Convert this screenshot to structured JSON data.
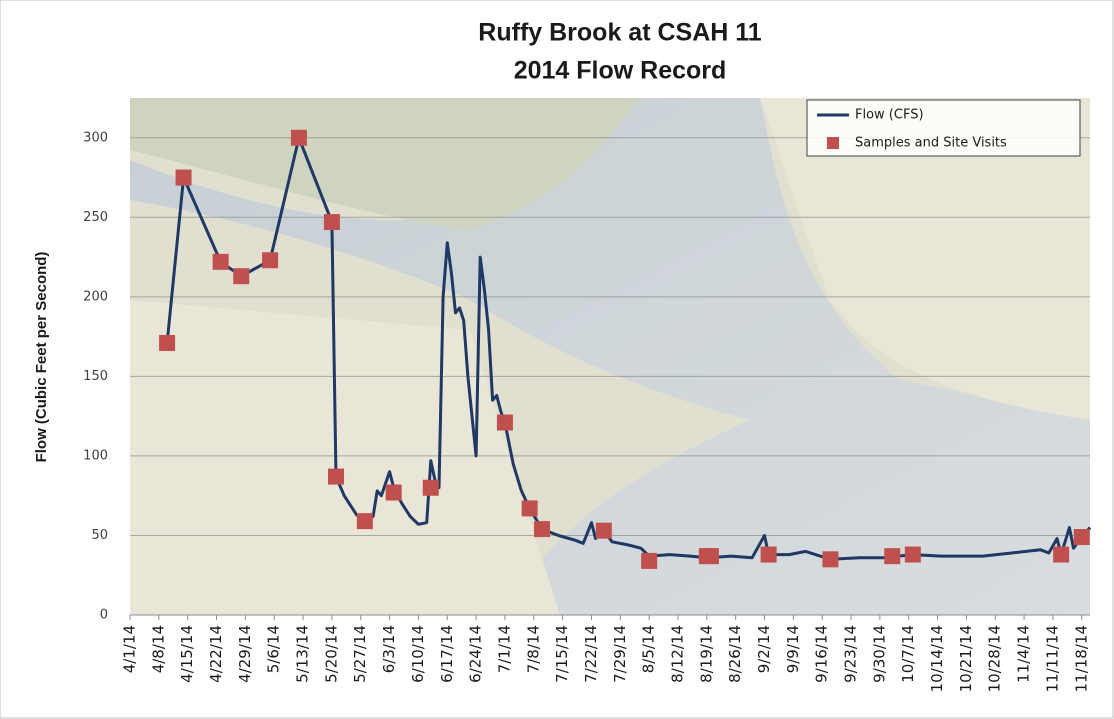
{
  "chart_data": {
    "type": "line",
    "title": "Ruffy Brook at CSAH 11",
    "subtitle": "2014 Flow Record",
    "y_label": "Flow (Cubic Feet per Second)",
    "ylim": [
      0,
      325
    ],
    "yticks": [
      0,
      50,
      100,
      150,
      200,
      250,
      300
    ],
    "xlim": [
      "4/1/14",
      "11/20/14"
    ],
    "xticks": [
      "4/1/14",
      "4/8/14",
      "4/15/14",
      "4/22/14",
      "4/29/14",
      "5/6/14",
      "5/13/14",
      "5/20/14",
      "5/27/14",
      "6/3/14",
      "6/10/14",
      "6/17/14",
      "6/24/14",
      "7/1/14",
      "7/8/14",
      "7/15/14",
      "7/22/14",
      "7/29/14",
      "8/5/14",
      "8/12/14",
      "8/19/14",
      "8/26/14",
      "9/2/14",
      "9/9/14",
      "9/16/14",
      "9/23/14",
      "9/30/14",
      "10/7/14",
      "10/14/14",
      "10/21/14",
      "10/28/14",
      "11/4/14",
      "11/11/14",
      "11/18/14"
    ],
    "grid": true,
    "legend": "upper right",
    "series": [
      {
        "name": "Flow (CFS)",
        "color": "#1f3864",
        "mode": "line",
        "x": [
          "4/10/14",
          "4/14/14",
          "4/23/14",
          "4/28/14",
          "5/5/14",
          "5/12/14",
          "5/20/14",
          "5/21/14",
          "5/23/14",
          "5/26/14",
          "5/28/14",
          "5/30/14",
          "5/31/14",
          "6/1/14",
          "6/3/14",
          "6/4/14",
          "6/6/14",
          "6/8/14",
          "6/10/14",
          "6/12/14",
          "6/13/14",
          "6/14/14",
          "6/15/14",
          "6/16/14",
          "6/17/14",
          "6/18/14",
          "6/19/14",
          "6/20/14",
          "6/21/14",
          "6/22/14",
          "6/24/14",
          "6/25/14",
          "6/26/14",
          "6/27/14",
          "6/28/14",
          "6/29/14",
          "6/30/14",
          "7/1/14",
          "7/3/14",
          "7/5/14",
          "7/7/14",
          "7/10/14",
          "7/14/14",
          "7/18/14",
          "7/20/14",
          "7/22/14",
          "7/23/14",
          "7/25/14",
          "7/27/14",
          "7/31/14",
          "8/3/14",
          "8/5/14",
          "8/10/14",
          "8/15/14",
          "8/19/14",
          "8/25/14",
          "8/30/14",
          "9/2/14",
          "9/3/14",
          "9/8/14",
          "9/12/14",
          "9/18/14",
          "9/25/14",
          "10/1/14",
          "10/8/14",
          "10/15/14",
          "10/25/14",
          "11/1/14",
          "11/8/14",
          "11/10/14",
          "11/12/14",
          "11/13/14",
          "11/15/14",
          "11/16/14",
          "11/18/14",
          "11/20/14"
        ],
        "values": [
          171,
          275,
          222,
          213,
          223,
          300,
          247,
          87,
          75,
          63,
          59,
          62,
          78,
          75,
          90,
          80,
          70,
          62,
          57,
          58,
          97,
          85,
          80,
          200,
          234,
          215,
          190,
          193,
          185,
          150,
          100,
          225,
          205,
          180,
          135,
          138,
          128,
          121,
          95,
          78,
          67,
          54,
          50,
          47,
          45,
          58,
          48,
          53,
          46,
          44,
          42,
          37,
          38,
          37,
          36,
          37,
          36,
          50,
          38,
          38,
          40,
          35,
          36,
          36,
          38,
          37,
          37,
          39,
          41,
          39,
          48,
          38,
          55,
          42,
          49,
          55
        ]
      },
      {
        "name": "Samples and Site Visits",
        "color": "#c0504d",
        "mode": "markers",
        "x": [
          "4/10/14",
          "4/14/14",
          "4/23/14",
          "4/28/14",
          "5/5/14",
          "5/12/14",
          "5/20/14",
          "5/21/14",
          "5/28/14",
          "6/4/14",
          "6/13/14",
          "7/1/14",
          "7/7/14",
          "7/10/14",
          "7/25/14",
          "8/5/14",
          "8/19/14",
          "8/20/14",
          "9/3/14",
          "9/18/14",
          "10/3/14",
          "10/8/14",
          "11/13/14",
          "11/18/14"
        ],
        "values": [
          171,
          275,
          222,
          213,
          223,
          300,
          247,
          87,
          59,
          77,
          80,
          121,
          67,
          54,
          53,
          34,
          37,
          37,
          38,
          35,
          37,
          38,
          38,
          49
        ]
      }
    ]
  }
}
